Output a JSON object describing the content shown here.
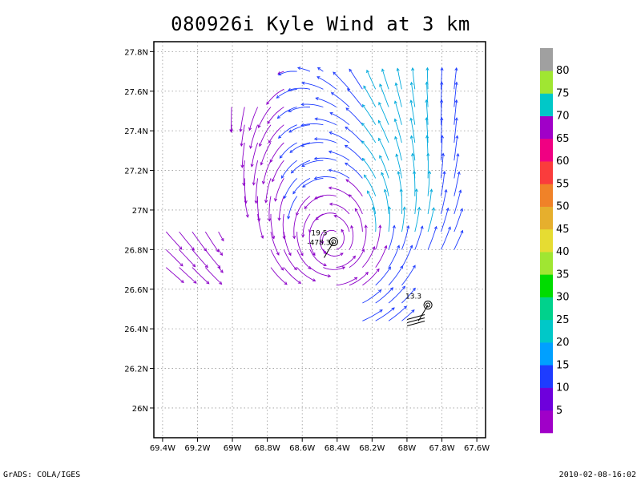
{
  "title": "080926i Kyle Wind at 3 km",
  "footer": {
    "left": "GrADS: COLA/IGES",
    "right": "2010-02-08-16:02"
  },
  "chart_data": {
    "type": "streamline",
    "xlim": [
      -69.45,
      -67.55
    ],
    "ylim": [
      25.85,
      27.85
    ],
    "x_ticks": [
      {
        "value": -69.4,
        "label": "69.4W"
      },
      {
        "value": -69.2,
        "label": "69.2W"
      },
      {
        "value": -69.0,
        "label": "69W"
      },
      {
        "value": -68.8,
        "label": "68.8W"
      },
      {
        "value": -68.6,
        "label": "68.6W"
      },
      {
        "value": -68.4,
        "label": "68.4W"
      },
      {
        "value": -68.2,
        "label": "68.2W"
      },
      {
        "value": -68.0,
        "label": "68W"
      },
      {
        "value": -67.8,
        "label": "67.8W"
      },
      {
        "value": -67.6,
        "label": "67.6W"
      }
    ],
    "y_ticks": [
      {
        "value": 26.0,
        "label": "26N"
      },
      {
        "value": 26.2,
        "label": "26.2N"
      },
      {
        "value": 26.4,
        "label": "26.4N"
      },
      {
        "value": 26.6,
        "label": "26.6N"
      },
      {
        "value": 26.8,
        "label": "26.8N"
      },
      {
        "value": 27.0,
        "label": "27N"
      },
      {
        "value": 27.2,
        "label": "27.2N"
      },
      {
        "value": 27.4,
        "label": "27.4N"
      },
      {
        "value": 27.6,
        "label": "27.6N"
      },
      {
        "value": 27.8,
        "label": "27.8N"
      }
    ],
    "grid": true,
    "legend_position": "right",
    "colorbar": {
      "labels": [
        "5",
        "10",
        "15",
        "20",
        "25",
        "30",
        "35",
        "40",
        "45",
        "50",
        "55",
        "60",
        "65",
        "70",
        "75",
        "80"
      ],
      "colors": [
        "#a000c8",
        "#6e00dc",
        "#1e3cff",
        "#00a0ff",
        "#00c8c8",
        "#00d28c",
        "#00dc00",
        "#a0e632",
        "#e6dc32",
        "#e6af2d",
        "#f08228",
        "#fa3c3c",
        "#f00082",
        "#a000c8",
        "#00c8c8",
        "#a0e632",
        "#a0a0a0"
      ]
    },
    "annotations": [
      {
        "lon": -68.42,
        "lat": 26.84,
        "label_top": "19.5",
        "label_bottom": "-478.3"
      },
      {
        "lon": -67.88,
        "lat": 26.52,
        "label_top": "13.3",
        "label_bottom": ""
      }
    ],
    "wind_colors": {
      "weak": "#8c00c8",
      "moderate": "#1e3cff",
      "strong": "#00aadc"
    }
  }
}
